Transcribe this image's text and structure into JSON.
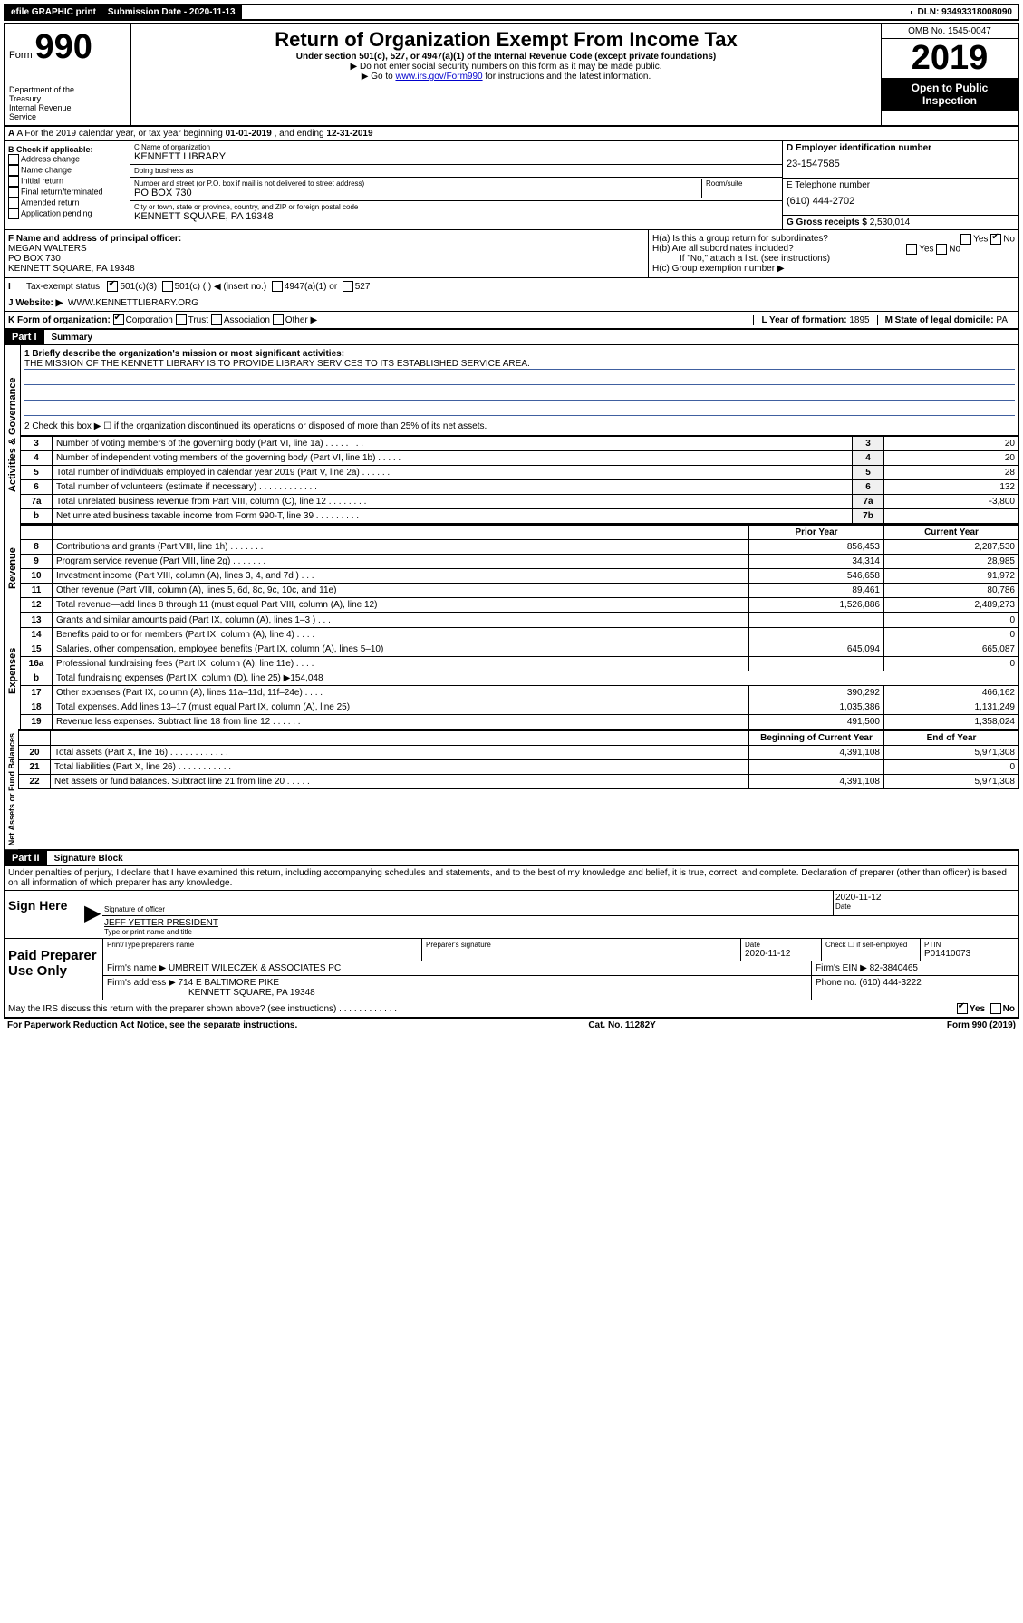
{
  "top": {
    "efile": "efile GRAPHIC print",
    "submission_label": "Submission Date - 2020-11-13",
    "dln": "DLN: 93493318008090"
  },
  "header": {
    "form_prefix": "Form",
    "form_number": "990",
    "dept": "Department of the Treasury\nInternal Revenue Service",
    "title": "Return of Organization Exempt From Income Tax",
    "sub1": "Under section 501(c), 527, or 4947(a)(1) of the Internal Revenue Code (except private foundations)",
    "sub2": "▶ Do not enter social security numbers on this form as it may be made public.",
    "sub3a": "▶ Go to ",
    "sub3_link": "www.irs.gov/Form990",
    "sub3b": " for instructions and the latest information.",
    "omb": "OMB No. 1545-0047",
    "year": "2019",
    "open": "Open to Public Inspection"
  },
  "rowA": {
    "text_a": "A For the 2019 calendar year, or tax year beginning ",
    "begin": "01-01-2019",
    "text_b": " , and ending ",
    "end": "12-31-2019"
  },
  "boxB": {
    "header": "B Check if applicable:",
    "items": [
      "Address change",
      "Name change",
      "Initial return",
      "Final return/terminated",
      "Amended return",
      "Application pending"
    ]
  },
  "boxC": {
    "name_label": "C Name of organization",
    "name": "KENNETT LIBRARY",
    "dba_label": "Doing business as",
    "dba": "",
    "addr_label": "Number and street (or P.O. box if mail is not delivered to street address)",
    "room_label": "Room/suite",
    "addr": "PO BOX 730",
    "city_label": "City or town, state or province, country, and ZIP or foreign postal code",
    "city": "KENNETT SQUARE, PA  19348"
  },
  "boxD": {
    "label": "D Employer identification number",
    "value": "23-1547585"
  },
  "boxE": {
    "label": "E Telephone number",
    "value": "(610) 444-2702"
  },
  "boxG": {
    "label": "G Gross receipts $",
    "value": "2,530,014"
  },
  "boxF": {
    "label": "F Name and address of principal officer:",
    "name": "MEGAN WALTERS",
    "addr1": "PO BOX 730",
    "addr2": "KENNETT SQUARE, PA  19348"
  },
  "boxH": {
    "ha": "H(a)  Is this a group return for subordinates?",
    "hb": "H(b)  Are all subordinates included?",
    "hb_note": "If \"No,\" attach a list. (see instructions)",
    "hc": "H(c)  Group exemption number ▶"
  },
  "rowI": {
    "label": "Tax-exempt status:",
    "opts": [
      "501(c)(3)",
      "501(c) (   ) ◀ (insert no.)",
      "4947(a)(1) or",
      "527"
    ]
  },
  "rowJ": {
    "label": "J   Website: ▶",
    "value": "WWW.KENNETTLIBRARY.ORG"
  },
  "rowK": {
    "label": "K Form of organization:",
    "opts": [
      "Corporation",
      "Trust",
      "Association",
      "Other ▶"
    ],
    "L": "L Year of formation: ",
    "L_val": "1895",
    "M": "M State of legal domicile: ",
    "M_val": "PA"
  },
  "part1": {
    "header": "Part I",
    "title": "Summary",
    "line1_label": "1  Briefly describe the organization's mission or most significant activities:",
    "mission": "THE MISSION OF THE KENNETT LIBRARY IS TO PROVIDE LIBRARY SERVICES TO ITS ESTABLISHED SERVICE AREA.",
    "line2": "2   Check this box ▶ ☐  if the organization discontinued its operations or disposed of more than 25% of its net assets.",
    "governance_label": "Activities & Governance",
    "revenue_label": "Revenue",
    "expenses_label": "Expenses",
    "netassets_label": "Net Assets or Fund Balances",
    "rows_gov": [
      {
        "n": "3",
        "t": "Number of voting members of the governing body (Part VI, line 1a)   .    .    .    .    .    .    .    .",
        "bn": "3",
        "v": "20"
      },
      {
        "n": "4",
        "t": "Number of independent voting members of the governing body (Part VI, line 1b)   .    .    .    .    .",
        "bn": "4",
        "v": "20"
      },
      {
        "n": "5",
        "t": "Total number of individuals employed in calendar year 2019 (Part V, line 2a)   .    .    .    .    .    .",
        "bn": "5",
        "v": "28"
      },
      {
        "n": "6",
        "t": "Total number of volunteers (estimate if necessary)   .    .    .    .    .    .    .    .    .    .    .    .",
        "bn": "6",
        "v": "132"
      },
      {
        "n": "7a",
        "t": "Total unrelated business revenue from Part VIII, column (C), line 12   .    .    .    .    .    .    .    .",
        "bn": "7a",
        "v": "-3,800"
      },
      {
        "n": "b",
        "t": "Net unrelated business taxable income from Form 990-T, line 39   .    .    .    .    .    .    .    .    .",
        "bn": "7b",
        "v": ""
      }
    ],
    "col_headers": {
      "prior": "Prior Year",
      "current": "Current Year"
    },
    "rows_rev": [
      {
        "n": "8",
        "t": "Contributions and grants (Part VIII, line 1h)   .    .    .    .    .    .    .",
        "p": "856,453",
        "c": "2,287,530"
      },
      {
        "n": "9",
        "t": "Program service revenue (Part VIII, line 2g)   .    .    .    .    .    .    .",
        "p": "34,314",
        "c": "28,985"
      },
      {
        "n": "10",
        "t": "Investment income (Part VIII, column (A), lines 3, 4, and 7d )   .    .    .",
        "p": "546,658",
        "c": "91,972"
      },
      {
        "n": "11",
        "t": "Other revenue (Part VIII, column (A), lines 5, 6d, 8c, 9c, 10c, and 11e)",
        "p": "89,461",
        "c": "80,786"
      },
      {
        "n": "12",
        "t": "Total revenue—add lines 8 through 11 (must equal Part VIII, column (A), line 12)",
        "p": "1,526,886",
        "c": "2,489,273"
      }
    ],
    "rows_exp": [
      {
        "n": "13",
        "t": "Grants and similar amounts paid (Part IX, column (A), lines 1–3 )   .    .    .",
        "p": "",
        "c": "0"
      },
      {
        "n": "14",
        "t": "Benefits paid to or for members (Part IX, column (A), line 4)   .    .    .    .",
        "p": "",
        "c": "0"
      },
      {
        "n": "15",
        "t": "Salaries, other compensation, employee benefits (Part IX, column (A), lines 5–10)",
        "p": "645,094",
        "c": "665,087"
      },
      {
        "n": "16a",
        "t": "Professional fundraising fees (Part IX, column (A), line 11e)   .    .    .    .",
        "p": "",
        "c": "0"
      },
      {
        "n": "b",
        "t": "Total fundraising expenses (Part IX, column (D), line 25) ▶154,048",
        "p": "—",
        "c": "—"
      },
      {
        "n": "17",
        "t": "Other expenses (Part IX, column (A), lines 11a–11d, 11f–24e)   .    .    .    .",
        "p": "390,292",
        "c": "466,162"
      },
      {
        "n": "18",
        "t": "Total expenses. Add lines 13–17 (must equal Part IX, column (A), line 25)",
        "p": "1,035,386",
        "c": "1,131,249"
      },
      {
        "n": "19",
        "t": "Revenue less expenses. Subtract line 18 from line 12   .    .    .    .    .    .",
        "p": "491,500",
        "c": "1,358,024"
      }
    ],
    "col_headers2": {
      "begin": "Beginning of Current Year",
      "end": "End of Year"
    },
    "rows_net": [
      {
        "n": "20",
        "t": "Total assets (Part X, line 16)   .    .    .    .    .    .    .    .    .    .    .    .",
        "p": "4,391,108",
        "c": "5,971,308"
      },
      {
        "n": "21",
        "t": "Total liabilities (Part X, line 26)   .    .    .    .    .    .    .    .    .    .    .",
        "p": "",
        "c": "0"
      },
      {
        "n": "22",
        "t": "Net assets or fund balances. Subtract line 21 from line 20   .    .    .    .    .",
        "p": "4,391,108",
        "c": "5,971,308"
      }
    ]
  },
  "part2": {
    "header": "Part II",
    "title": "Signature Block",
    "perjury": "Under penalties of perjury, I declare that I have examined this return, including accompanying schedules and statements, and to the best of my knowledge and belief, it is true, correct, and complete. Declaration of preparer (other than officer) is based on all information of which preparer has any knowledge.",
    "sign_here": "Sign Here",
    "sig_officer": "Signature of officer",
    "sig_date": "2020-11-12",
    "date_label": "Date",
    "officer_name": "JEFF YETTER PRESIDENT",
    "officer_name_label": "Type or print name and title",
    "paid": "Paid Preparer Use Only",
    "prep_name_label": "Print/Type preparer's name",
    "prep_sig_label": "Preparer's signature",
    "prep_date_label": "Date",
    "prep_date": "2020-11-12",
    "check_label": "Check ☐ if self-employed",
    "ptin_label": "PTIN",
    "ptin": "P01410073",
    "firm_name_label": "Firm's name    ▶",
    "firm_name": "UMBREIT WILECZEK & ASSOCIATES PC",
    "firm_ein_label": "Firm's EIN ▶",
    "firm_ein": "82-3840465",
    "firm_addr_label": "Firm's address ▶",
    "firm_addr1": "714 E BALTIMORE PIKE",
    "firm_addr2": "KENNETT SQUARE, PA  19348",
    "phone_label": "Phone no.",
    "phone": "(610) 444-3222",
    "irs_discuss": "May the IRS discuss this return with the preparer shown above? (see instructions)   .    .    .    .    .    .    .    .    .    .    .    ."
  },
  "footer": {
    "left": "For Paperwork Reduction Act Notice, see the separate instructions.",
    "center": "Cat. No. 11282Y",
    "right": "Form 990 (2019)"
  },
  "yesno": {
    "yes": "Yes",
    "no": "No"
  }
}
